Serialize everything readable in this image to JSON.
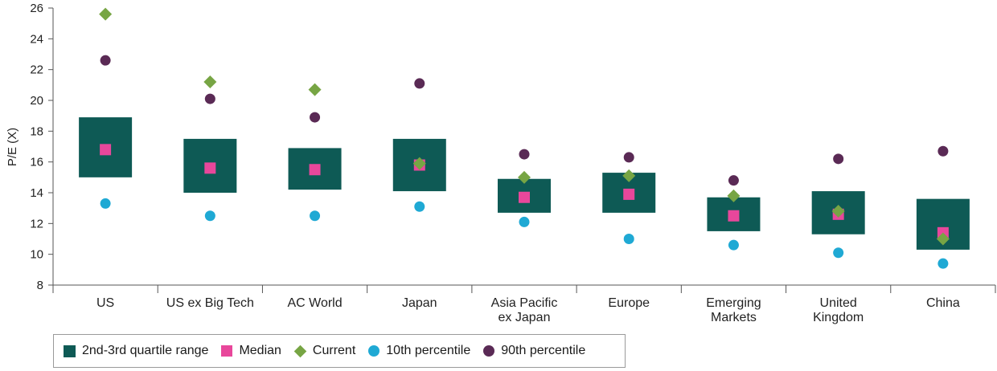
{
  "colors": {
    "range": "#0e5a55",
    "median": "#e8479b",
    "current": "#77a544",
    "p10": "#1fa9d4",
    "p90": "#5a2a55",
    "axis": "#555555"
  },
  "legend": {
    "range": "2nd-3rd quartile range",
    "median": "Median",
    "current": "Current",
    "p10": "10th percentile",
    "p90": "90th percentile"
  },
  "chart_data": {
    "type": "box",
    "ylabel": "P/E (X)",
    "xlabel": "",
    "ylim": [
      8,
      26
    ],
    "yticks": [
      8,
      10,
      12,
      14,
      16,
      18,
      20,
      22,
      24,
      26
    ],
    "grid": false,
    "legend_position": "bottom-left",
    "categories": [
      [
        "US"
      ],
      [
        "US ex Big Tech"
      ],
      [
        "AC World"
      ],
      [
        "Japan"
      ],
      [
        "Asia Pacific",
        "ex Japan"
      ],
      [
        "Europe"
      ],
      [
        "Emerging",
        "Markets"
      ],
      [
        "United",
        "Kingdom"
      ],
      [
        "China"
      ]
    ],
    "series": [
      {
        "name": "2nd-3rd quartile range",
        "type": "range",
        "values": [
          [
            15.0,
            18.9
          ],
          [
            14.0,
            17.5
          ],
          [
            14.2,
            16.9
          ],
          [
            14.1,
            17.5
          ],
          [
            12.7,
            14.9
          ],
          [
            12.7,
            15.3
          ],
          [
            11.5,
            13.7
          ],
          [
            11.3,
            14.1
          ],
          [
            10.3,
            13.6
          ]
        ]
      },
      {
        "name": "Median",
        "values": [
          16.8,
          15.6,
          15.5,
          15.8,
          13.7,
          13.9,
          12.5,
          12.6,
          11.4
        ]
      },
      {
        "name": "Current",
        "values": [
          25.6,
          21.2,
          20.7,
          15.9,
          15.0,
          15.1,
          13.8,
          12.8,
          11.0
        ]
      },
      {
        "name": "10th percentile",
        "values": [
          13.3,
          12.5,
          12.5,
          13.1,
          12.1,
          11.0,
          10.6,
          10.1,
          9.4
        ]
      },
      {
        "name": "90th percentile",
        "values": [
          22.6,
          20.1,
          18.9,
          21.1,
          16.5,
          16.3,
          14.8,
          16.2,
          16.7
        ]
      }
    ]
  }
}
